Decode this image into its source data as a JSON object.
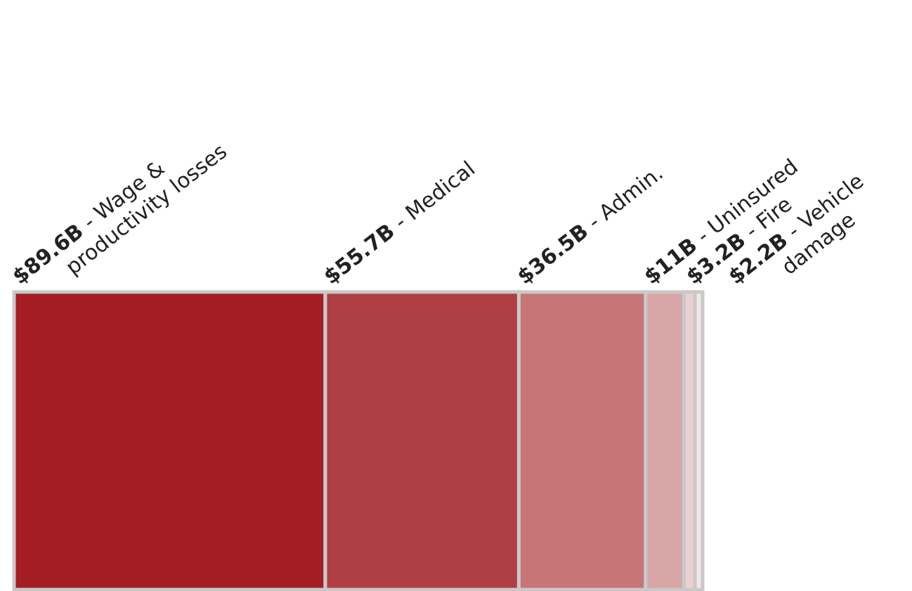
{
  "chart_data": {
    "type": "other",
    "categories": [
      "- Wage & productivity losses",
      "- Medical",
      "- Admin.",
      "- Uninsured",
      "- Fire",
      "- Vehicle damage"
    ],
    "values": [
      89.6,
      55.7,
      36.5,
      11,
      3.2,
      2.2
    ],
    "value_labels": [
      "$89.6B",
      "$55.7B",
      "$36.5B",
      "$11B",
      "$3.2B",
      "$2.2B"
    ],
    "colors": [
      "#a31d22",
      "#b03f43",
      "#c77577",
      "#d9a6a8",
      "#ebd0d2",
      "#f4e5e6"
    ]
  }
}
